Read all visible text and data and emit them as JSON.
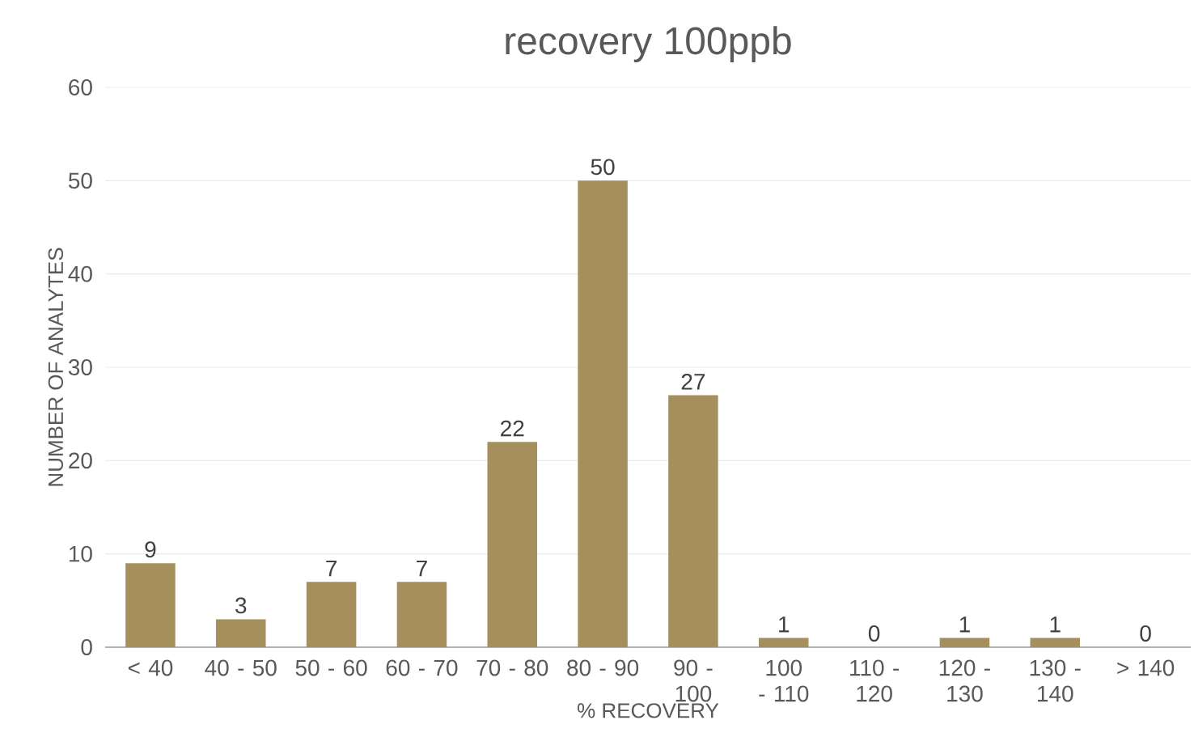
{
  "chart_data": {
    "type": "bar",
    "title": "recovery 100ppb",
    "xlabel": "% RECOVERY",
    "ylabel": "NUMBER OF ANALYTES",
    "categories": [
      "< 40",
      "40 - 50",
      "50 - 60",
      "60 - 70",
      "70 - 80",
      "80 - 90",
      "90 - 100",
      "100 - 110",
      "110 - 120",
      "120 - 130",
      "130 - 140",
      "> 140"
    ],
    "values": [
      9,
      3,
      7,
      7,
      22,
      50,
      27,
      1,
      0,
      1,
      1,
      0
    ],
    "color": "#a58f5d",
    "ylim": [
      0,
      60
    ],
    "yticks": [
      0,
      10,
      20,
      30,
      40,
      50,
      60
    ],
    "grid": "y",
    "data_labels": true
  }
}
